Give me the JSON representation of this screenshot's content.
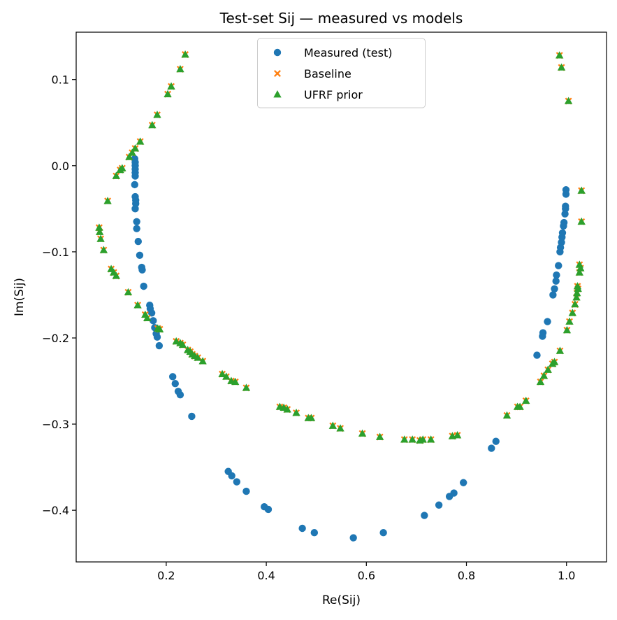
{
  "chart_data": {
    "type": "scatter",
    "title": "Test-set Sij — measured vs models",
    "xlabel": "Re(Sij)",
    "ylabel": "Im(Sij)",
    "xlim": [
      0.02,
      1.08
    ],
    "ylim": [
      -0.46,
      0.155
    ],
    "xticks": [
      0.2,
      0.4,
      0.6,
      0.8,
      1.0
    ],
    "xtick_labels": [
      "0.2",
      "0.4",
      "0.6",
      "0.8",
      "1.0"
    ],
    "yticks": [
      0.1,
      0.0,
      -0.1,
      -0.2,
      -0.3,
      -0.4
    ],
    "ytick_labels": [
      "0.1",
      "0.0",
      "−0.1",
      "−0.2",
      "−0.3",
      "−0.4"
    ],
    "grid": false,
    "legend": "top-center",
    "series": [
      {
        "name": "Measured (test)",
        "marker": "circle",
        "color": "#1f77b4",
        "points": [
          [
            0.137,
            0.008
          ],
          [
            0.138,
            0.004
          ],
          [
            0.138,
            0.0
          ],
          [
            0.138,
            -0.004
          ],
          [
            0.138,
            -0.008
          ],
          [
            0.138,
            -0.012
          ],
          [
            0.137,
            -0.022
          ],
          [
            0.138,
            -0.036
          ],
          [
            0.139,
            -0.04
          ],
          [
            0.139,
            -0.044
          ],
          [
            0.138,
            -0.05
          ],
          [
            0.141,
            -0.065
          ],
          [
            0.141,
            -0.073
          ],
          [
            0.144,
            -0.088
          ],
          [
            0.147,
            -0.104
          ],
          [
            0.151,
            -0.118
          ],
          [
            0.152,
            -0.121
          ],
          [
            0.155,
            -0.14
          ],
          [
            0.167,
            -0.162
          ],
          [
            0.168,
            -0.166
          ],
          [
            0.171,
            -0.171
          ],
          [
            0.174,
            -0.18
          ],
          [
            0.177,
            -0.188
          ],
          [
            0.18,
            -0.195
          ],
          [
            0.182,
            -0.199
          ],
          [
            0.186,
            -0.209
          ],
          [
            0.213,
            -0.245
          ],
          [
            0.218,
            -0.253
          ],
          [
            0.224,
            -0.262
          ],
          [
            0.228,
            -0.266
          ],
          [
            0.251,
            -0.291
          ],
          [
            0.324,
            -0.355
          ],
          [
            0.331,
            -0.36
          ],
          [
            0.341,
            -0.367
          ],
          [
            0.36,
            -0.378
          ],
          [
            0.396,
            -0.396
          ],
          [
            0.404,
            -0.399
          ],
          [
            0.472,
            -0.421
          ],
          [
            0.496,
            -0.426
          ],
          [
            0.574,
            -0.432
          ],
          [
            0.634,
            -0.426
          ],
          [
            0.716,
            -0.406
          ],
          [
            0.745,
            -0.394
          ],
          [
            0.766,
            -0.384
          ],
          [
            0.775,
            -0.38
          ],
          [
            0.794,
            -0.368
          ],
          [
            0.85,
            -0.328
          ],
          [
            0.859,
            -0.32
          ],
          [
            0.941,
            -0.22
          ],
          [
            0.952,
            -0.198
          ],
          [
            0.953,
            -0.194
          ],
          [
            0.962,
            -0.181
          ],
          [
            0.973,
            -0.15
          ],
          [
            0.976,
            -0.143
          ],
          [
            0.979,
            -0.134
          ],
          [
            0.98,
            -0.127
          ],
          [
            0.984,
            -0.116
          ],
          [
            0.987,
            -0.1
          ],
          [
            0.988,
            -0.095
          ],
          [
            0.99,
            -0.089
          ],
          [
            0.991,
            -0.083
          ],
          [
            0.992,
            -0.078
          ],
          [
            0.994,
            -0.07
          ],
          [
            0.995,
            -0.066
          ],
          [
            0.997,
            -0.056
          ],
          [
            0.998,
            -0.047
          ],
          [
            0.998,
            -0.05
          ],
          [
            0.999,
            -0.033
          ],
          [
            0.999,
            -0.028
          ]
        ]
      },
      {
        "name": "Baseline",
        "marker": "x",
        "color": "#ff7f0e",
        "points": [
          [
            0.238,
            0.129
          ],
          [
            0.228,
            0.112
          ],
          [
            0.21,
            0.092
          ],
          [
            0.203,
            0.083
          ],
          [
            0.182,
            0.059
          ],
          [
            0.172,
            0.047
          ],
          [
            0.148,
            0.028
          ],
          [
            0.138,
            0.02
          ],
          [
            0.132,
            0.015
          ],
          [
            0.126,
            0.01
          ],
          [
            0.112,
            -0.003
          ],
          [
            0.108,
            -0.005
          ],
          [
            0.1,
            -0.012
          ],
          [
            0.083,
            -0.041
          ],
          [
            0.066,
            -0.072
          ],
          [
            0.067,
            -0.077
          ],
          [
            0.069,
            -0.085
          ],
          [
            0.075,
            -0.098
          ],
          [
            0.09,
            -0.12
          ],
          [
            0.095,
            -0.124
          ],
          [
            0.1,
            -0.128
          ],
          [
            0.124,
            -0.147
          ],
          [
            0.143,
            -0.162
          ],
          [
            0.158,
            -0.173
          ],
          [
            0.162,
            -0.177
          ],
          [
            0.183,
            -0.189
          ],
          [
            0.187,
            -0.19
          ],
          [
            0.22,
            -0.204
          ],
          [
            0.228,
            -0.206
          ],
          [
            0.233,
            -0.208
          ],
          [
            0.243,
            -0.214
          ],
          [
            0.248,
            -0.216
          ],
          [
            0.252,
            -0.219
          ],
          [
            0.257,
            -0.221
          ],
          [
            0.263,
            -0.223
          ],
          [
            0.273,
            -0.227
          ],
          [
            0.312,
            -0.242
          ],
          [
            0.32,
            -0.245
          ],
          [
            0.33,
            -0.25
          ],
          [
            0.338,
            -0.251
          ],
          [
            0.36,
            -0.258
          ],
          [
            0.427,
            -0.28
          ],
          [
            0.435,
            -0.281
          ],
          [
            0.442,
            -0.283
          ],
          [
            0.46,
            -0.287
          ],
          [
            0.484,
            -0.293
          ],
          [
            0.49,
            -0.293
          ],
          [
            0.533,
            -0.302
          ],
          [
            0.548,
            -0.305
          ],
          [
            0.592,
            -0.311
          ],
          [
            0.627,
            -0.315
          ],
          [
            0.676,
            -0.318
          ],
          [
            0.692,
            -0.318
          ],
          [
            0.707,
            -0.319
          ],
          [
            0.713,
            -0.318
          ],
          [
            0.729,
            -0.318
          ],
          [
            0.772,
            -0.314
          ],
          [
            0.782,
            -0.313
          ],
          [
            0.881,
            -0.29
          ],
          [
            0.902,
            -0.28
          ],
          [
            0.907,
            -0.28
          ],
          [
            0.919,
            -0.273
          ],
          [
            0.948,
            -0.251
          ],
          [
            0.955,
            -0.244
          ],
          [
            0.963,
            -0.237
          ],
          [
            0.972,
            -0.23
          ],
          [
            0.976,
            -0.228
          ],
          [
            0.987,
            -0.215
          ],
          [
            1.001,
            -0.191
          ],
          [
            1.006,
            -0.181
          ],
          [
            1.012,
            -0.171
          ],
          [
            1.017,
            -0.161
          ],
          [
            1.02,
            -0.153
          ],
          [
            1.021,
            -0.148
          ],
          [
            1.023,
            -0.143
          ],
          [
            1.022,
            -0.14
          ],
          [
            1.026,
            -0.124
          ],
          [
            1.028,
            -0.119
          ],
          [
            1.026,
            -0.115
          ],
          [
            1.03,
            -0.065
          ],
          [
            1.03,
            -0.029
          ],
          [
            1.004,
            0.075
          ],
          [
            0.99,
            0.114
          ],
          [
            0.986,
            0.128
          ]
        ]
      },
      {
        "name": "UFRF prior",
        "marker": "triangle",
        "color": "#2ca02c",
        "points": [
          [
            0.238,
            0.129
          ],
          [
            0.228,
            0.112
          ],
          [
            0.21,
            0.092
          ],
          [
            0.203,
            0.083
          ],
          [
            0.182,
            0.059
          ],
          [
            0.172,
            0.047
          ],
          [
            0.148,
            0.028
          ],
          [
            0.138,
            0.02
          ],
          [
            0.132,
            0.015
          ],
          [
            0.126,
            0.01
          ],
          [
            0.112,
            -0.003
          ],
          [
            0.108,
            -0.005
          ],
          [
            0.1,
            -0.012
          ],
          [
            0.083,
            -0.041
          ],
          [
            0.066,
            -0.072
          ],
          [
            0.067,
            -0.077
          ],
          [
            0.069,
            -0.085
          ],
          [
            0.075,
            -0.098
          ],
          [
            0.09,
            -0.12
          ],
          [
            0.095,
            -0.124
          ],
          [
            0.1,
            -0.128
          ],
          [
            0.124,
            -0.147
          ],
          [
            0.143,
            -0.162
          ],
          [
            0.158,
            -0.173
          ],
          [
            0.162,
            -0.177
          ],
          [
            0.183,
            -0.189
          ],
          [
            0.187,
            -0.19
          ],
          [
            0.22,
            -0.204
          ],
          [
            0.228,
            -0.206
          ],
          [
            0.233,
            -0.208
          ],
          [
            0.243,
            -0.214
          ],
          [
            0.248,
            -0.216
          ],
          [
            0.252,
            -0.219
          ],
          [
            0.257,
            -0.221
          ],
          [
            0.263,
            -0.223
          ],
          [
            0.273,
            -0.227
          ],
          [
            0.312,
            -0.242
          ],
          [
            0.32,
            -0.245
          ],
          [
            0.33,
            -0.25
          ],
          [
            0.338,
            -0.251
          ],
          [
            0.36,
            -0.258
          ],
          [
            0.427,
            -0.28
          ],
          [
            0.435,
            -0.281
          ],
          [
            0.442,
            -0.283
          ],
          [
            0.46,
            -0.287
          ],
          [
            0.484,
            -0.293
          ],
          [
            0.49,
            -0.293
          ],
          [
            0.533,
            -0.302
          ],
          [
            0.548,
            -0.305
          ],
          [
            0.592,
            -0.311
          ],
          [
            0.627,
            -0.315
          ],
          [
            0.676,
            -0.318
          ],
          [
            0.692,
            -0.318
          ],
          [
            0.707,
            -0.319
          ],
          [
            0.713,
            -0.318
          ],
          [
            0.729,
            -0.318
          ],
          [
            0.772,
            -0.314
          ],
          [
            0.782,
            -0.313
          ],
          [
            0.881,
            -0.29
          ],
          [
            0.902,
            -0.28
          ],
          [
            0.907,
            -0.28
          ],
          [
            0.919,
            -0.273
          ],
          [
            0.948,
            -0.251
          ],
          [
            0.955,
            -0.244
          ],
          [
            0.963,
            -0.237
          ],
          [
            0.972,
            -0.23
          ],
          [
            0.976,
            -0.228
          ],
          [
            0.987,
            -0.215
          ],
          [
            1.001,
            -0.191
          ],
          [
            1.006,
            -0.181
          ],
          [
            1.012,
            -0.171
          ],
          [
            1.017,
            -0.161
          ],
          [
            1.02,
            -0.153
          ],
          [
            1.021,
            -0.148
          ],
          [
            1.023,
            -0.143
          ],
          [
            1.022,
            -0.14
          ],
          [
            1.026,
            -0.124
          ],
          [
            1.028,
            -0.119
          ],
          [
            1.026,
            -0.115
          ],
          [
            1.03,
            -0.065
          ],
          [
            1.03,
            -0.029
          ],
          [
            1.004,
            0.075
          ],
          [
            0.99,
            0.114
          ],
          [
            0.986,
            0.128
          ]
        ]
      }
    ]
  }
}
